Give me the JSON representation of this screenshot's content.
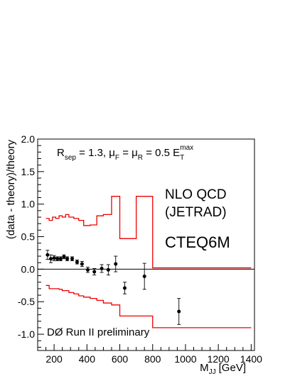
{
  "chart_data": {
    "type": "scatter",
    "xlabel": "M",
    "xlabel_sub": "JJ",
    "xlabel_unit": "[GeV]",
    "ylabel": "(data - theory)/theory",
    "xlim": [
      100,
      1420
    ],
    "ylim": [
      -1.25,
      2.0
    ],
    "x_ticks": [
      200,
      400,
      600,
      800,
      1000,
      1200,
      1400
    ],
    "x_tick_labels": [
      "200",
      "400",
      "600",
      "800",
      "1000",
      "1200",
      "1400"
    ],
    "y_ticks": [
      -1.0,
      -0.5,
      0.0,
      0.5,
      1.0,
      1.5,
      2.0
    ],
    "y_tick_labels": [
      "-1.0",
      "-0.5",
      "0.0",
      "0.5",
      "1.0",
      "1.5",
      "2.0"
    ],
    "annotations": {
      "params": {
        "r": "R",
        "r_sub": "sep",
        "r_val": " = 1.3,  ",
        "mu": "μ",
        "muf_sub": "F",
        "eq1": " = ",
        "mur_sub": "R",
        "eq2": " = 0.5 E",
        "et_sub": "T",
        "et_sup": "max"
      },
      "nlo_line1": "NLO QCD",
      "nlo_line2": "(JETRAD)",
      "pdf": "CTEQ6M",
      "experiment": "DØ Run II preliminary"
    },
    "colors": {
      "band": "#ee0000",
      "data": "#000000",
      "zero_line": "#000000"
    },
    "data_points": [
      {
        "x": 160,
        "y": 0.22,
        "err": 0.07
      },
      {
        "x": 180,
        "y": 0.16,
        "err": 0.06
      },
      {
        "x": 200,
        "y": 0.17,
        "err": 0.04
      },
      {
        "x": 220,
        "y": 0.16,
        "err": 0.03
      },
      {
        "x": 240,
        "y": 0.16,
        "err": 0.03
      },
      {
        "x": 260,
        "y": 0.19,
        "err": 0.03
      },
      {
        "x": 280,
        "y": 0.16,
        "err": 0.03
      },
      {
        "x": 310,
        "y": 0.16,
        "err": 0.03
      },
      {
        "x": 340,
        "y": 0.11,
        "err": 0.03
      },
      {
        "x": 370,
        "y": 0.08,
        "err": 0.04
      },
      {
        "x": 405,
        "y": -0.01,
        "err": 0.04
      },
      {
        "x": 445,
        "y": -0.04,
        "err": 0.05
      },
      {
        "x": 490,
        "y": 0.01,
        "err": 0.06
      },
      {
        "x": 530,
        "y": -0.01,
        "err": 0.08
      },
      {
        "x": 575,
        "y": 0.08,
        "err": 0.12
      },
      {
        "x": 630,
        "y": -0.29,
        "err": 0.09
      },
      {
        "x": 750,
        "y": -0.11,
        "err": 0.2
      },
      {
        "x": 960,
        "y": -0.65,
        "err": 0.2
      }
    ],
    "band_upper": {
      "edges": [
        150,
        170,
        190,
        210,
        230,
        250,
        270,
        290,
        320,
        350,
        380,
        420,
        460,
        500,
        550,
        600,
        700,
        800,
        1400
      ],
      "values": [
        0.78,
        0.75,
        0.8,
        0.78,
        0.82,
        0.8,
        0.84,
        0.8,
        0.78,
        0.75,
        0.67,
        0.68,
        0.82,
        0.84,
        1.12,
        0.47,
        1.12,
        0.02
      ]
    },
    "band_lower": {
      "edges": [
        150,
        170,
        190,
        210,
        230,
        250,
        270,
        290,
        320,
        350,
        380,
        420,
        460,
        500,
        550,
        600,
        700,
        800,
        1400
      ],
      "values": [
        -0.25,
        -0.3,
        -0.3,
        -0.3,
        -0.31,
        -0.33,
        -0.33,
        -0.36,
        -0.38,
        -0.41,
        -0.43,
        -0.45,
        -0.48,
        -0.52,
        -0.55,
        -0.72,
        -0.72,
        -0.9
      ]
    }
  }
}
